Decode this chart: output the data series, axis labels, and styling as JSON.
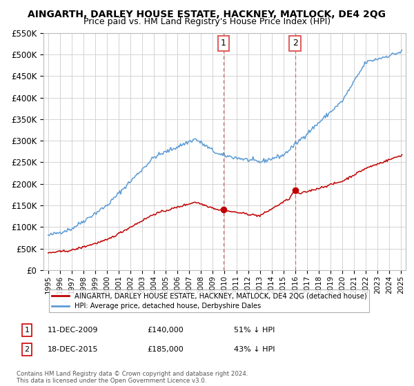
{
  "title": "AINGARTH, DARLEY HOUSE ESTATE, HACKNEY, MATLOCK, DE4 2QG",
  "subtitle": "Price paid vs. HM Land Registry's House Price Index (HPI)",
  "ylabel_ticks": [
    "£0",
    "£50K",
    "£100K",
    "£150K",
    "£200K",
    "£250K",
    "£300K",
    "£350K",
    "£400K",
    "£450K",
    "£500K",
    "£550K"
  ],
  "ylim": [
    0,
    550000
  ],
  "ytick_vals": [
    0,
    50000,
    100000,
    150000,
    200000,
    250000,
    300000,
    350000,
    400000,
    450000,
    500000,
    550000
  ],
  "hpi_color": "#5b9bd5",
  "sale_color": "#c00000",
  "dashed_color": "#e06060",
  "legend_sale_label": "AINGARTH, DARLEY HOUSE ESTATE, HACKNEY, MATLOCK, DE4 2QG (detached house)",
  "legend_hpi_label": "HPI: Average price, detached house, Derbyshire Dales",
  "sale1_date_num": 2009.95,
  "sale1_price": 140000,
  "sale1_label": "1",
  "sale2_date_num": 2015.97,
  "sale2_price": 185000,
  "sale2_label": "2",
  "footnote": "Contains HM Land Registry data © Crown copyright and database right 2024.\nThis data is licensed under the Open Government Licence v3.0.",
  "background_color": "#ffffff",
  "grid_color": "#cccccc",
  "title_fontsize": 10,
  "subtitle_fontsize": 9,
  "xlim_left": 1994.6,
  "xlim_right": 2025.4
}
